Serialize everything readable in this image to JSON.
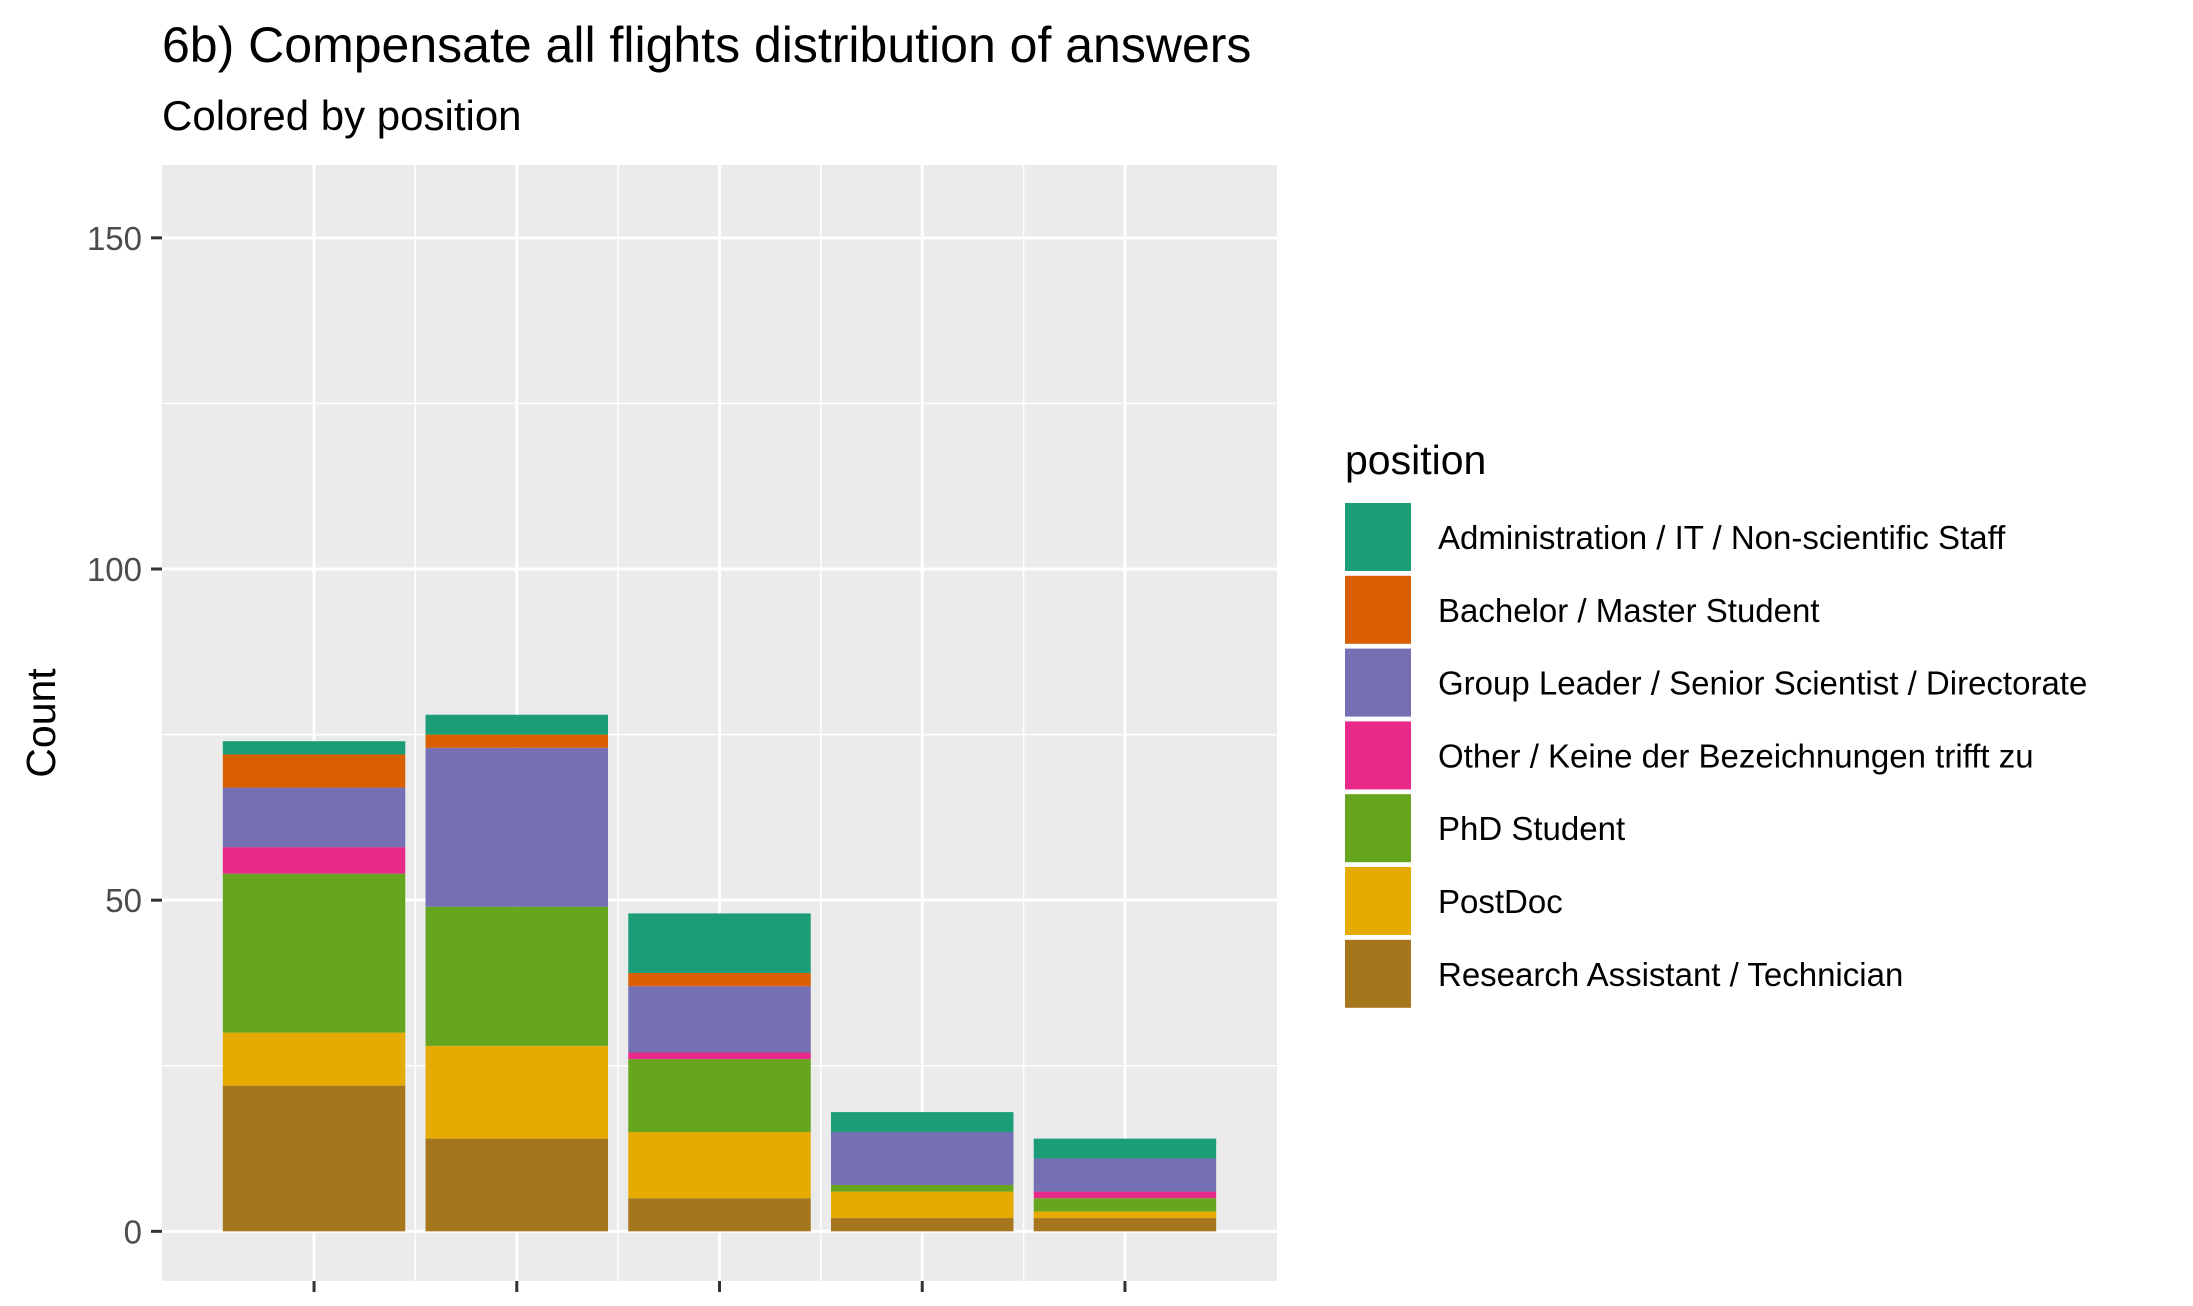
{
  "chart_data": {
    "type": "bar",
    "stacked": true,
    "title": "6b) Compensate all flights distribution of answers",
    "subtitle": "Colored by  position",
    "xlabel": "",
    "ylabel": "Count",
    "ylim": [
      -7.5,
      161
    ],
    "yticks": [
      0,
      50,
      100,
      150
    ],
    "grid": true,
    "legend_position": "right",
    "legend_title": "position",
    "categories": [
      "",
      "",
      "",
      "",
      ""
    ],
    "series": [
      {
        "name": "Research Assistant / Technician",
        "color": "#A6761D",
        "values": [
          22,
          14,
          5,
          2,
          2
        ]
      },
      {
        "name": "PostDoc",
        "color": "#E6AB02",
        "values": [
          8,
          14,
          10,
          4,
          1
        ]
      },
      {
        "name": "PhD Student",
        "color": "#66A61E",
        "values": [
          24,
          21,
          11,
          1,
          2
        ]
      },
      {
        "name": "Other / Keine der Bezeichnungen trifft zu",
        "color": "#E7298A",
        "values": [
          4,
          0,
          1,
          0,
          1
        ]
      },
      {
        "name": "Group Leader / Senior Scientist / Directorate",
        "color": "#7570B3",
        "values": [
          9,
          24,
          10,
          8,
          5
        ]
      },
      {
        "name": "Bachelor / Master Student",
        "color": "#D95F02",
        "values": [
          5,
          2,
          2,
          0,
          0
        ]
      },
      {
        "name": "Administration / IT / Non-scientific Staff",
        "color": "#1B9E77",
        "values": [
          2,
          3,
          9,
          3,
          3
        ]
      }
    ],
    "legend_order": [
      "Administration / IT / Non-scientific Staff",
      "Bachelor / Master Student",
      "Group Leader / Senior Scientist / Directorate",
      "Other / Keine der Bezeichnungen trifft zu",
      "PhD Student",
      "PostDoc",
      "Research Assistant / Technician"
    ]
  }
}
